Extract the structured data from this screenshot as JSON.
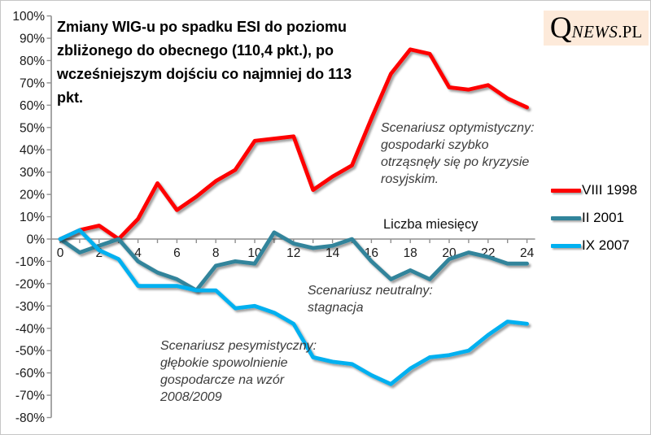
{
  "header": {
    "title_text": "Zmiany WIG-u po spadku ESI do poziomu\nzbliżonego do obecnego (110,4 pkt.), po\nwcześniejszym dojściu co najmniej do 113\npkt.",
    "logo": {
      "q": "Q",
      "news": "NEWS",
      "pl": ".PL",
      "bg_color": "#fdeada"
    }
  },
  "annotations": {
    "optimistic": "Scenariusz optymistyczny:\ngospodarki szybko\notrząsnęły się po kryzysie\nrosyjskim.",
    "neutral": "Scenariusz neutralny:\nstagnacja",
    "pessimistic": "Scenariusz pesymistyczny:\ngłębokie spowolnienie\ngospodarcze na wzór\n2008/2009"
  },
  "chart_data": {
    "type": "line",
    "xlabel": "Liczba miesięcy",
    "ylabel": "",
    "title": "Zmiany WIG-u po spadku ESI do poziomu zbliżonego do obecnego (110,4 pkt.), po wcześniejszym dojściu co najmniej do 113 pkt.",
    "x": [
      0,
      1,
      2,
      3,
      4,
      5,
      6,
      7,
      8,
      9,
      10,
      11,
      12,
      13,
      14,
      15,
      16,
      17,
      18,
      19,
      20,
      21,
      22,
      23,
      24
    ],
    "xlim": [
      0,
      24
    ],
    "ylim": [
      -80,
      100
    ],
    "grid": false,
    "legend_position": "right",
    "x_tick_step": 2,
    "x_tick_labels": [
      "0",
      "2",
      "4",
      "6",
      "8",
      "10",
      "12",
      "14",
      "16",
      "18",
      "20",
      "22",
      "24"
    ],
    "y_tick_values": [
      100,
      90,
      80,
      70,
      60,
      50,
      40,
      30,
      20,
      10,
      0,
      -10,
      -20,
      -30,
      -40,
      -50,
      -60,
      -70,
      -80
    ],
    "y_tick_labels": [
      "100%",
      "90%",
      "80%",
      "70%",
      "60%",
      "50%",
      "40%",
      "30%",
      "20%",
      "10%",
      "0%",
      "-10%",
      "-20%",
      "-30%",
      "-40%",
      "-50%",
      "-60%",
      "-70%",
      "-80%"
    ],
    "series": [
      {
        "name": "VIII 1998",
        "color": "#fe0000",
        "values": [
          0,
          4,
          6,
          0,
          9,
          25,
          13,
          19,
          26,
          31,
          44,
          45,
          46,
          22,
          28,
          33,
          54,
          74,
          85,
          83,
          68,
          67,
          69,
          63,
          59
        ]
      },
      {
        "name": "II 2001",
        "color": "#31849b",
        "values": [
          0,
          -6,
          -3,
          0,
          -10,
          -15,
          -18,
          -23,
          -12,
          -10,
          -11,
          3,
          -2,
          -4,
          -3,
          0,
          -10,
          -18,
          -14,
          -18,
          -9,
          -6,
          -8,
          -11,
          -11
        ]
      },
      {
        "name": "IX 2007",
        "color": "#00b0f0",
        "values": [
          0,
          4,
          -5,
          -9,
          -21,
          -21,
          -21,
          -23,
          -23,
          -31,
          -30,
          -33,
          -38,
          -53,
          -55,
          -56,
          -61,
          -65,
          -58,
          -53,
          -52,
          -50,
          -43,
          -37,
          -38
        ]
      }
    ]
  }
}
